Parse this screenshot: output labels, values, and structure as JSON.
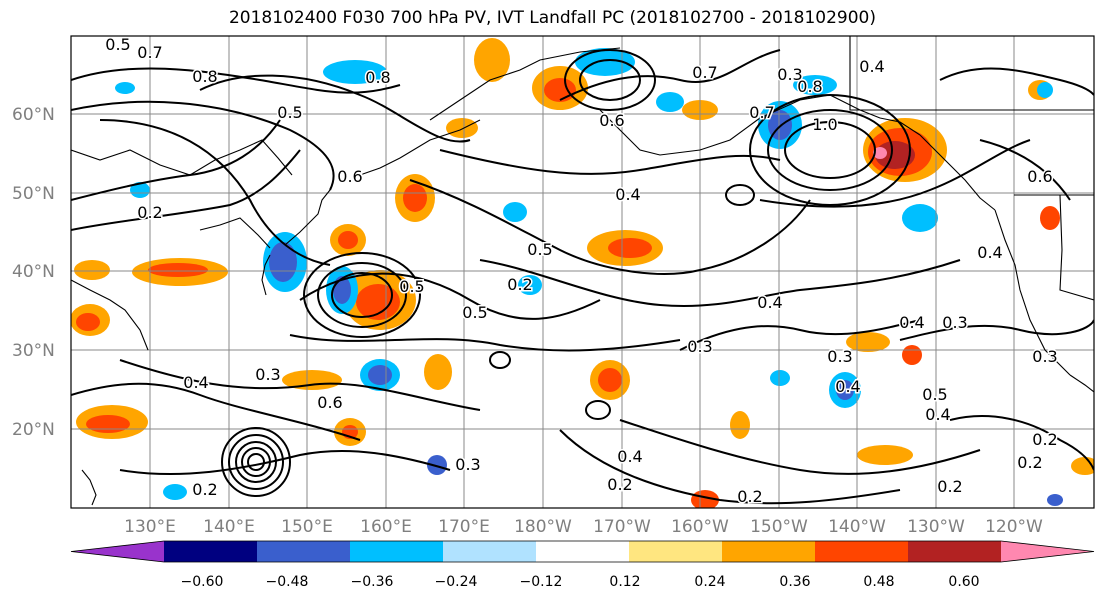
{
  "title": "2018102400 F030 700 hPa PV, IVT Landfall PC (2018102700 - 2018102900)",
  "lat_labels": [
    "60°N",
    "50°N",
    "40°N",
    "30°N",
    "20°N"
  ],
  "lon_labels": [
    "130°E",
    "140°E",
    "150°E",
    "160°E",
    "170°E",
    "180°W",
    "170°W",
    "160°W",
    "150°W",
    "140°W",
    "130°W",
    "120°W"
  ],
  "colorbar": {
    "colors": [
      "#9933cc",
      "#000080",
      "#3a5fcd",
      "#00bfff",
      "#b0e2ff",
      "#ffffff",
      "#ffe680",
      "#ffa500",
      "#ff4500",
      "#b22222",
      "#ff88b0"
    ],
    "ticks": [
      "−0.60",
      "−0.48",
      "−0.36",
      "−0.24",
      "−0.12",
      "0.12",
      "0.24",
      "0.36",
      "0.48",
      "0.60"
    ]
  },
  "contour_labels": [
    "0.5",
    "0.7",
    "0.8",
    "0.8",
    "0.5",
    "0.6",
    "0.2",
    "0.7",
    "0.6",
    "0.7",
    "0.4",
    "0.3",
    "1.0",
    "0.8",
    "0.5",
    "0.4",
    "0.6",
    "0.4",
    "0.5",
    "0.2",
    "0.5",
    "0.4",
    "0.4",
    "0.3",
    "0.3",
    "0.4",
    "0.3",
    "0.3",
    "0.2",
    "0.4",
    "0.2",
    "0.2",
    "0.2",
    "0.4",
    "0.5",
    "0.2",
    "0.3",
    "0.4",
    "0.2",
    "0.6",
    "0.3"
  ]
}
